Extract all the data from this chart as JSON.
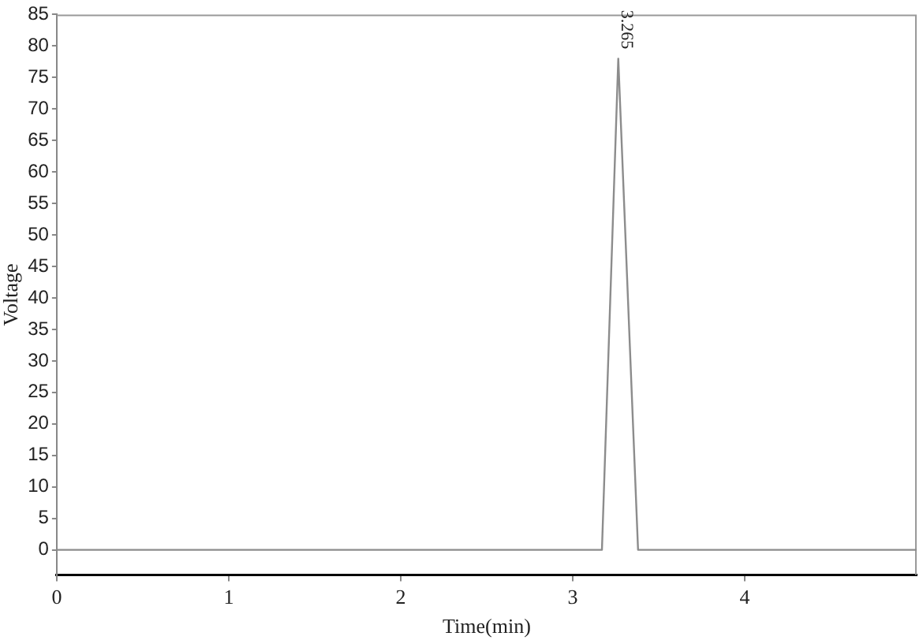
{
  "chart_data": {
    "type": "line",
    "xlabel": "Time(min)",
    "ylabel": "Voltage",
    "x": [
      0,
      3.17,
      3.265,
      3.38,
      5
    ],
    "series": [
      {
        "color": "#8c8c8c",
        "values": [
          0,
          0,
          78,
          0,
          0
        ]
      }
    ],
    "xlim": [
      0,
      5
    ],
    "xticks": [
      0,
      1,
      2,
      3,
      4
    ],
    "ylim": [
      -4,
      85
    ],
    "yticks": [
      0,
      5,
      10,
      15,
      20,
      25,
      30,
      35,
      40,
      45,
      50,
      55,
      60,
      65,
      70,
      75,
      80,
      85
    ],
    "annotations": [
      {
        "text": "3.265",
        "x": 3.265,
        "y": 78
      }
    ],
    "grid": false,
    "legend": false,
    "marker": "none",
    "line_style": "solid"
  }
}
